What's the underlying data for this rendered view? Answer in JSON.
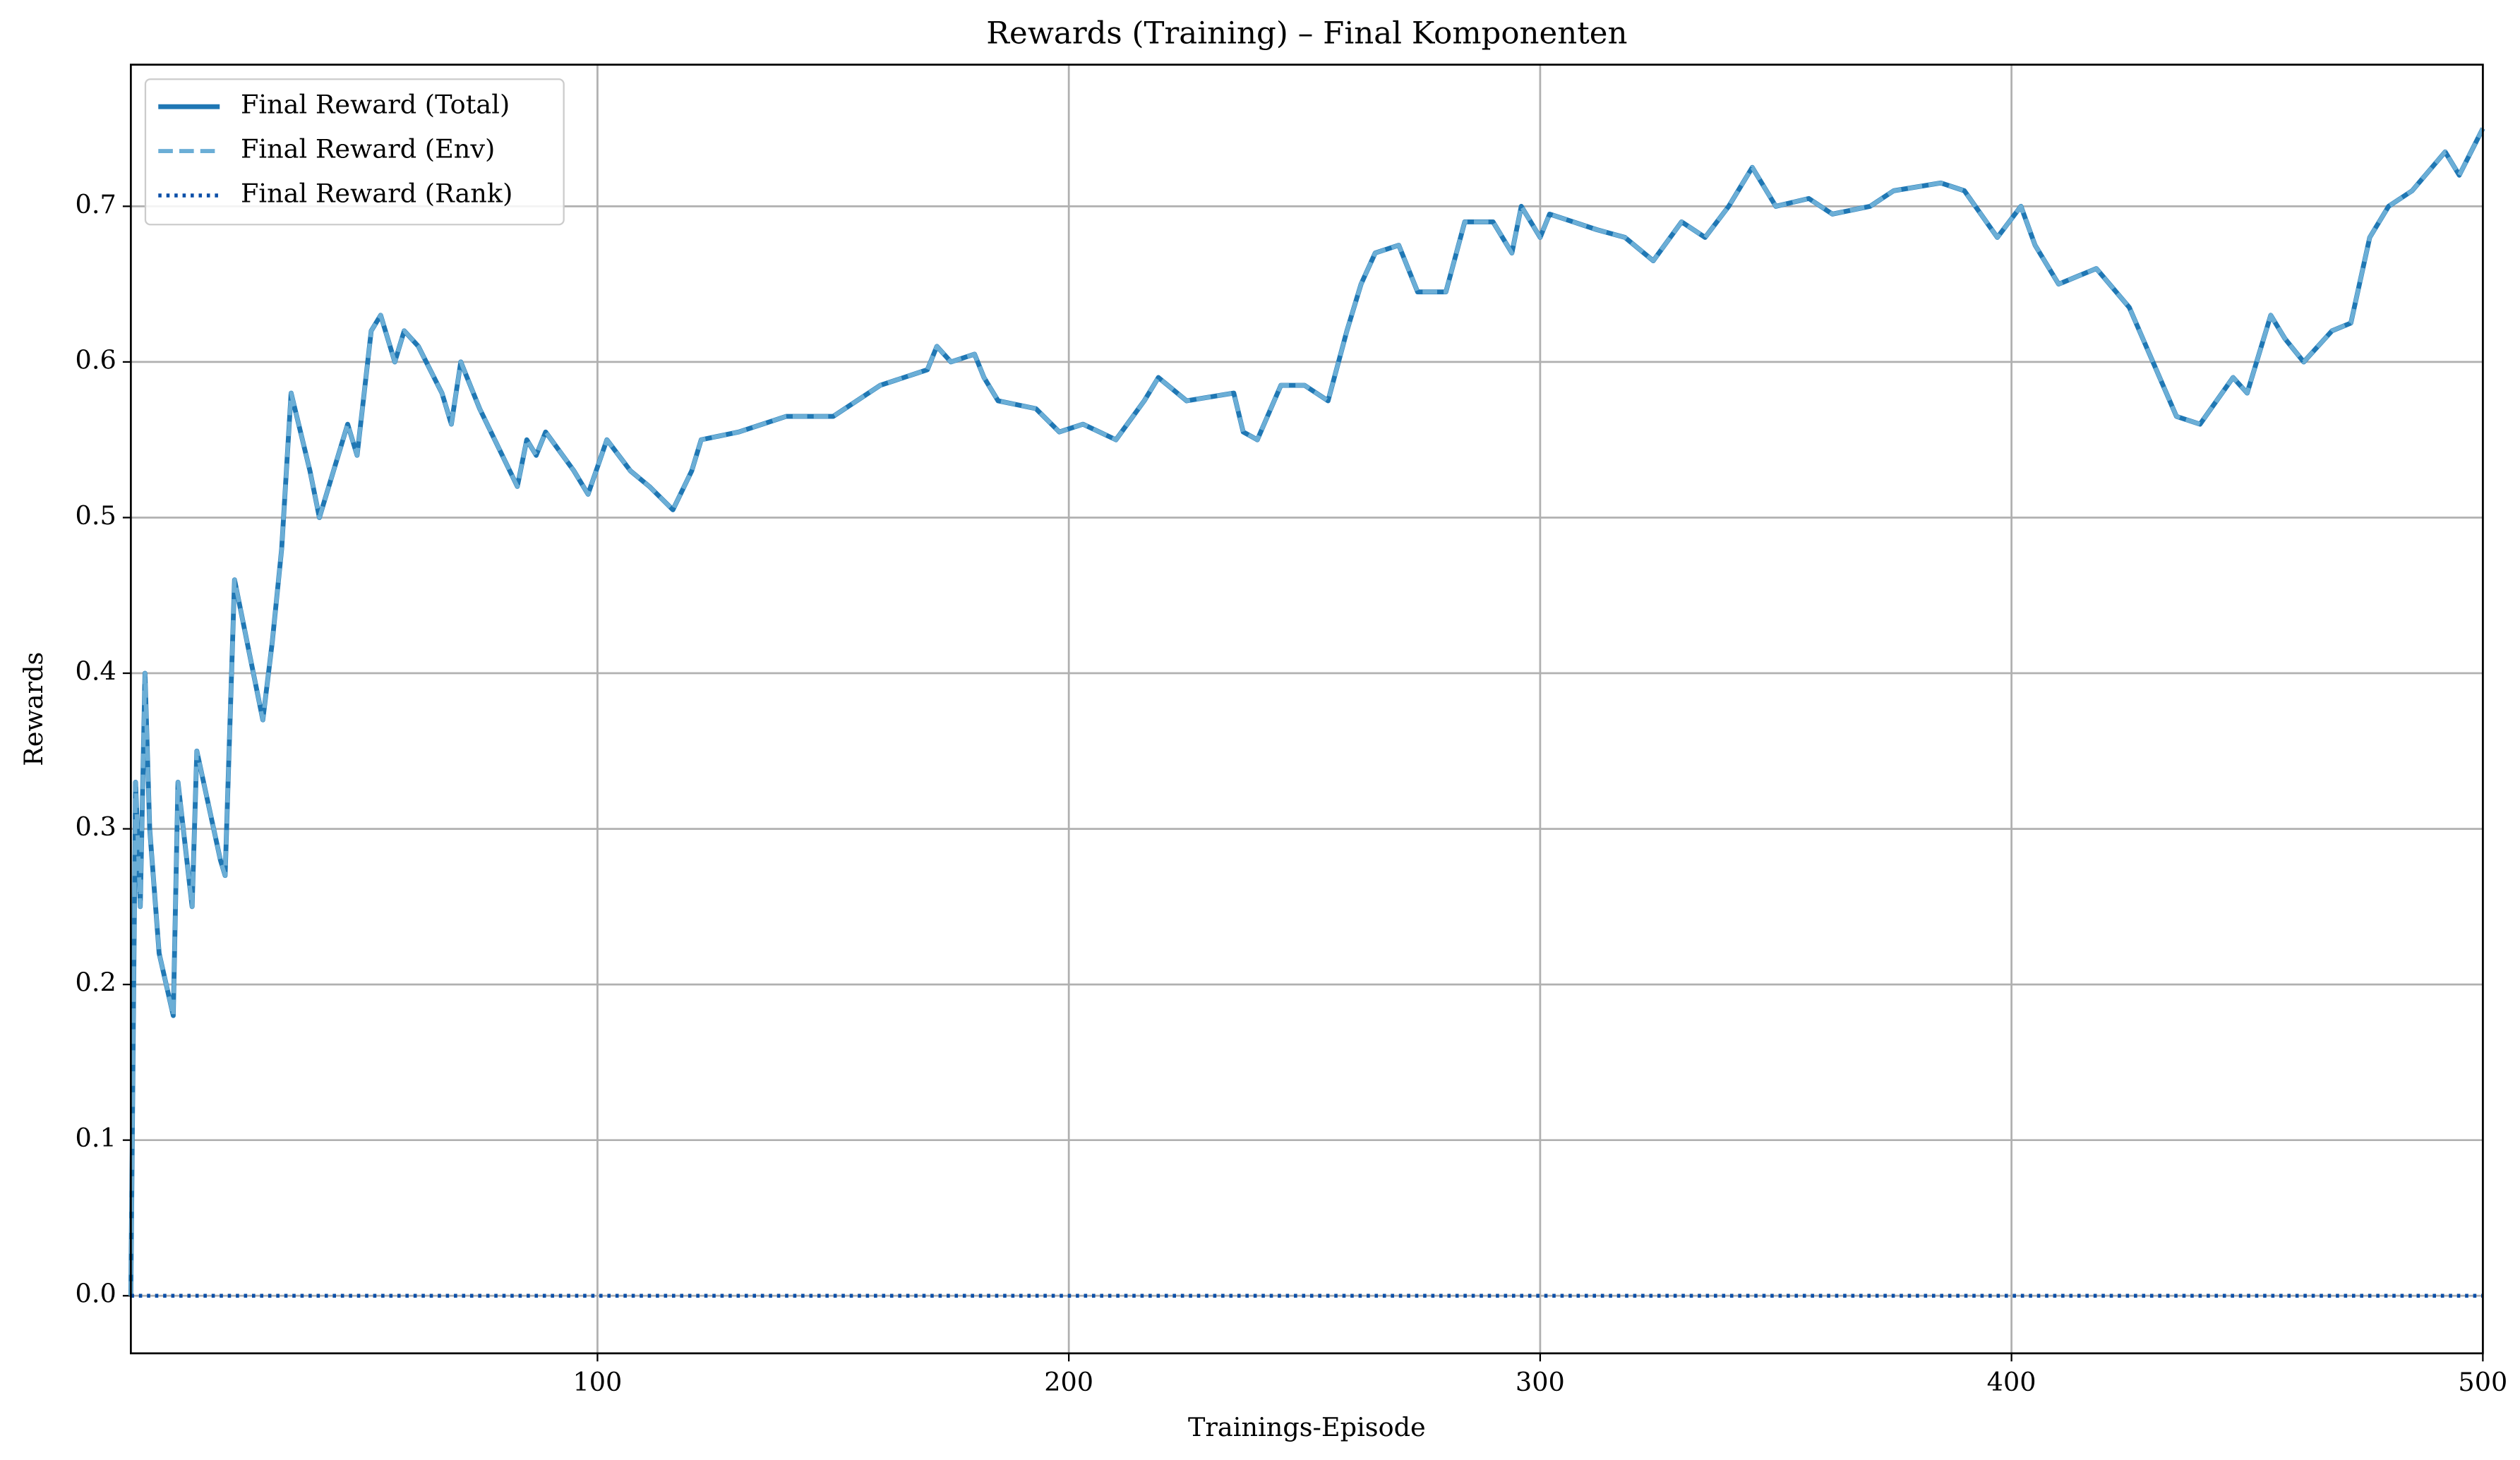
{
  "chart_data": {
    "type": "line",
    "title": "Rewards (Training) – Final Komponenten",
    "xlabel": "Trainings-Episode",
    "ylabel": "Rewards",
    "x": [
      1,
      2,
      3,
      4,
      5,
      7,
      10,
      11,
      14,
      15,
      20,
      21,
      23,
      27,
      29,
      31,
      33,
      35,
      39,
      41,
      44,
      47,
      49,
      52,
      54,
      57,
      59,
      62,
      67,
      69,
      71,
      75,
      83,
      85,
      87,
      89,
      95,
      98,
      102,
      107,
      111,
      116,
      120,
      122,
      130,
      140,
      150,
      160,
      170,
      172,
      175,
      180,
      182,
      185,
      193,
      198,
      203,
      210,
      216,
      219,
      225,
      235,
      237,
      240,
      245,
      250,
      255,
      259,
      262,
      265,
      270,
      274,
      280,
      284,
      290,
      294,
      296,
      300,
      302,
      307,
      312,
      318,
      324,
      330,
      335,
      340,
      345,
      350,
      357,
      362,
      370,
      375,
      385,
      390,
      397,
      402,
      405,
      410,
      414,
      418,
      425,
      430,
      435,
      440,
      447,
      450,
      455,
      458,
      462,
      468,
      472,
      476,
      480,
      485,
      492,
      495,
      500
    ],
    "series": [
      {
        "name": "Final Reward (Total)",
        "color": "#1f77b4",
        "linestyle": "solid",
        "values": [
          0,
          0.33,
          0.25,
          0.4,
          0.3,
          0.22,
          0.18,
          0.33,
          0.25,
          0.35,
          0.28,
          0.27,
          0.46,
          0.4,
          0.37,
          0.42,
          0.48,
          0.58,
          0.53,
          0.5,
          0.53,
          0.56,
          0.54,
          0.62,
          0.63,
          0.6,
          0.62,
          0.61,
          0.58,
          0.56,
          0.6,
          0.57,
          0.52,
          0.55,
          0.54,
          0.555,
          0.53,
          0.515,
          0.55,
          0.53,
          0.52,
          0.505,
          0.53,
          0.55,
          0.555,
          0.565,
          0.565,
          0.585,
          0.595,
          0.61,
          0.6,
          0.605,
          0.59,
          0.575,
          0.57,
          0.555,
          0.56,
          0.55,
          0.575,
          0.59,
          0.575,
          0.58,
          0.555,
          0.55,
          0.585,
          0.585,
          0.575,
          0.62,
          0.65,
          0.67,
          0.675,
          0.645,
          0.645,
          0.69,
          0.69,
          0.67,
          0.7,
          0.68,
          0.695,
          0.69,
          0.685,
          0.68,
          0.665,
          0.69,
          0.68,
          0.7,
          0.725,
          0.7,
          0.705,
          0.695,
          0.7,
          0.71,
          0.715,
          0.71,
          0.68,
          0.7,
          0.675,
          0.65,
          0.655,
          0.66,
          0.635,
          0.6,
          0.565,
          0.56,
          0.59,
          0.58,
          0.63,
          0.615,
          0.6,
          0.62,
          0.625,
          0.68,
          0.7,
          0.71,
          0.735,
          0.72,
          0.75
        ]
      },
      {
        "name": "Final Reward (Env)",
        "color": "#6baed6",
        "linestyle": "dashed",
        "values": [
          0,
          0.33,
          0.25,
          0.4,
          0.3,
          0.22,
          0.18,
          0.33,
          0.25,
          0.35,
          0.28,
          0.27,
          0.46,
          0.4,
          0.37,
          0.42,
          0.48,
          0.58,
          0.53,
          0.5,
          0.53,
          0.56,
          0.54,
          0.62,
          0.63,
          0.6,
          0.62,
          0.61,
          0.58,
          0.56,
          0.6,
          0.57,
          0.52,
          0.55,
          0.54,
          0.555,
          0.53,
          0.515,
          0.55,
          0.53,
          0.52,
          0.505,
          0.53,
          0.55,
          0.555,
          0.565,
          0.565,
          0.585,
          0.595,
          0.61,
          0.6,
          0.605,
          0.59,
          0.575,
          0.57,
          0.555,
          0.56,
          0.55,
          0.575,
          0.59,
          0.575,
          0.58,
          0.555,
          0.55,
          0.585,
          0.585,
          0.575,
          0.62,
          0.65,
          0.67,
          0.675,
          0.645,
          0.645,
          0.69,
          0.69,
          0.67,
          0.7,
          0.68,
          0.695,
          0.69,
          0.685,
          0.68,
          0.665,
          0.69,
          0.68,
          0.7,
          0.725,
          0.7,
          0.705,
          0.695,
          0.7,
          0.71,
          0.715,
          0.71,
          0.68,
          0.7,
          0.675,
          0.65,
          0.655,
          0.66,
          0.635,
          0.6,
          0.565,
          0.56,
          0.59,
          0.58,
          0.63,
          0.615,
          0.6,
          0.62,
          0.625,
          0.68,
          0.7,
          0.71,
          0.735,
          0.72,
          0.75
        ]
      },
      {
        "name": "Final Reward (Rank)",
        "color": "#0b4fa8",
        "linestyle": "dotted",
        "values": [
          0,
          0,
          0,
          0,
          0,
          0,
          0,
          0,
          0,
          0,
          0,
          0,
          0,
          0,
          0,
          0,
          0,
          0,
          0,
          0,
          0,
          0,
          0,
          0,
          0,
          0,
          0,
          0,
          0,
          0,
          0,
          0,
          0,
          0,
          0,
          0,
          0,
          0,
          0,
          0,
          0,
          0,
          0,
          0,
          0,
          0,
          0,
          0,
          0,
          0,
          0,
          0,
          0,
          0,
          0,
          0,
          0,
          0,
          0,
          0,
          0,
          0,
          0,
          0,
          0,
          0,
          0,
          0,
          0,
          0,
          0,
          0,
          0,
          0,
          0,
          0,
          0,
          0,
          0,
          0,
          0,
          0,
          0,
          0,
          0,
          0,
          0,
          0,
          0,
          0,
          0,
          0,
          0,
          0,
          0,
          0,
          0,
          0,
          0,
          0,
          0,
          0,
          0,
          0,
          0,
          0,
          0,
          0,
          0,
          0,
          0,
          0,
          0,
          0,
          0,
          0,
          0
        ]
      }
    ],
    "xlim": [
      1,
      500
    ],
    "ylim": [
      -0.037,
      0.791
    ],
    "xticks": [
      100,
      200,
      300,
      400,
      500
    ],
    "yticks": [
      {
        "value": 0,
        "label": "0.0"
      },
      0.1,
      0.2,
      0.3,
      0.4,
      0.5,
      0.6,
      0.7
    ],
    "grid": true,
    "legend": "upper-left"
  }
}
